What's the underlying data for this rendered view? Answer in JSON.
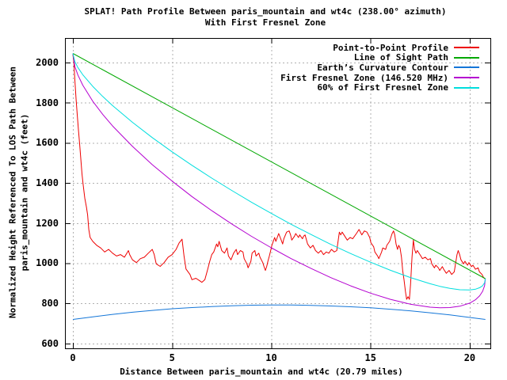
{
  "title": {
    "line1": "SPLAT! Path Profile Between paris_mountain and wt4c (238.00° azimuth)",
    "line2": "With First Fresnel Zone"
  },
  "axes": {
    "x_label": "Distance Between paris_mountain and wt4c (20.79 miles)",
    "y_label_line1": "Normalized Height Referenced To LOS Path Between",
    "y_label_line2": "paris_mountain and wt4c (feet)",
    "x_ticks": [
      0,
      5,
      10,
      15,
      20
    ],
    "y_ticks": [
      600,
      800,
      1000,
      1200,
      1400,
      1600,
      1800,
      2000
    ]
  },
  "legend": [
    {
      "label": "Point-to-Point Profile",
      "color": "#ee0000"
    },
    {
      "label": "Line of Sight Path",
      "color": "#00a800"
    },
    {
      "label": "Earth’s Curvature Contour",
      "color": "#1476d8"
    },
    {
      "label": "First Fresnel Zone (146.520 MHz)",
      "color": "#b400d0"
    },
    {
      "label": "60% of First Fresnel Zone",
      "color": "#00dede"
    }
  ],
  "colors": {
    "background": "#ffffff",
    "border": "#000000",
    "grid": "#b0b0b0",
    "text": "#000000"
  },
  "chart_data": {
    "type": "line",
    "title": "SPLAT! Path Profile Between paris_mountain and wt4c (238.00° azimuth) With First Fresnel Zone",
    "xlabel": "Distance Between paris_mountain and wt4c (20.79 miles)",
    "ylabel": "Normalized Height Referenced To LOS Path Between paris_mountain and wt4c (feet)",
    "xlim": [
      -0.4,
      21.04
    ],
    "ylim": [
      576,
      2122
    ],
    "grid": true,
    "grid_style": "dashed-gray",
    "legend_position": "top-right",
    "series": [
      {
        "name": "Point-to-Point Profile",
        "color": "#ee0000",
        "points": [
          [
            0,
            2040
          ],
          [
            0.05,
            1998
          ],
          [
            0.1,
            1912
          ],
          [
            0.16,
            1820
          ],
          [
            0.22,
            1740
          ],
          [
            0.28,
            1665
          ],
          [
            0.34,
            1595
          ],
          [
            0.4,
            1520
          ],
          [
            0.46,
            1445
          ],
          [
            0.52,
            1390
          ],
          [
            0.6,
            1325
          ],
          [
            0.68,
            1280
          ],
          [
            0.74,
            1240
          ],
          [
            0.8,
            1168
          ],
          [
            0.87,
            1128
          ],
          [
            1.0,
            1109
          ],
          [
            1.2,
            1089
          ],
          [
            1.4,
            1076
          ],
          [
            1.6,
            1056
          ],
          [
            1.8,
            1069
          ],
          [
            2.0,
            1050
          ],
          [
            2.2,
            1036
          ],
          [
            2.4,
            1043
          ],
          [
            2.6,
            1030
          ],
          [
            2.8,
            1063
          ],
          [
            2.86,
            1043
          ],
          [
            3.0,
            1017
          ],
          [
            3.2,
            1003
          ],
          [
            3.4,
            1023
          ],
          [
            3.6,
            1030
          ],
          [
            3.8,
            1050
          ],
          [
            4.0,
            1069
          ],
          [
            4.1,
            1043
          ],
          [
            4.2,
            997
          ],
          [
            4.4,
            984
          ],
          [
            4.6,
            1003
          ],
          [
            4.8,
            1030
          ],
          [
            5.0,
            1043
          ],
          [
            5.2,
            1069
          ],
          [
            5.35,
            1100
          ],
          [
            5.5,
            1120
          ],
          [
            5.6,
            1036
          ],
          [
            5.7,
            971
          ],
          [
            5.9,
            944
          ],
          [
            6.0,
            918
          ],
          [
            6.2,
            925
          ],
          [
            6.4,
            912
          ],
          [
            6.5,
            905
          ],
          [
            6.65,
            918
          ],
          [
            6.8,
            971
          ],
          [
            6.9,
            1010
          ],
          [
            7.0,
            1043
          ],
          [
            7.1,
            1056
          ],
          [
            7.24,
            1096
          ],
          [
            7.3,
            1082
          ],
          [
            7.37,
            1109
          ],
          [
            7.5,
            1063
          ],
          [
            7.64,
            1050
          ],
          [
            7.77,
            1076
          ],
          [
            7.84,
            1036
          ],
          [
            7.97,
            1017
          ],
          [
            8.1,
            1050
          ],
          [
            8.23,
            1069
          ],
          [
            8.3,
            1043
          ],
          [
            8.44,
            1063
          ],
          [
            8.57,
            1056
          ],
          [
            8.63,
            1023
          ],
          [
            8.77,
            997
          ],
          [
            8.83,
            977
          ],
          [
            8.97,
            1010
          ],
          [
            9.03,
            1050
          ],
          [
            9.17,
            1063
          ],
          [
            9.23,
            1036
          ],
          [
            9.37,
            1050
          ],
          [
            9.43,
            1030
          ],
          [
            9.57,
            1003
          ],
          [
            9.63,
            984
          ],
          [
            9.7,
            964
          ],
          [
            9.77,
            984
          ],
          [
            9.83,
            1010
          ],
          [
            9.9,
            1036
          ],
          [
            9.97,
            1063
          ],
          [
            10.03,
            1089
          ],
          [
            10.17,
            1128
          ],
          [
            10.23,
            1109
          ],
          [
            10.3,
            1128
          ],
          [
            10.37,
            1148
          ],
          [
            10.5,
            1115
          ],
          [
            10.57,
            1096
          ],
          [
            10.63,
            1122
          ],
          [
            10.77,
            1155
          ],
          [
            10.9,
            1161
          ],
          [
            10.97,
            1141
          ],
          [
            11.03,
            1115
          ],
          [
            11.17,
            1135
          ],
          [
            11.23,
            1148
          ],
          [
            11.37,
            1128
          ],
          [
            11.43,
            1141
          ],
          [
            11.57,
            1122
          ],
          [
            11.63,
            1135
          ],
          [
            11.7,
            1141
          ],
          [
            11.83,
            1096
          ],
          [
            11.97,
            1076
          ],
          [
            12.1,
            1089
          ],
          [
            12.23,
            1063
          ],
          [
            12.37,
            1050
          ],
          [
            12.5,
            1063
          ],
          [
            12.63,
            1043
          ],
          [
            12.77,
            1056
          ],
          [
            12.9,
            1050
          ],
          [
            13.03,
            1069
          ],
          [
            13.17,
            1056
          ],
          [
            13.3,
            1063
          ],
          [
            13.43,
            1155
          ],
          [
            13.5,
            1141
          ],
          [
            13.57,
            1155
          ],
          [
            13.7,
            1135
          ],
          [
            13.83,
            1115
          ],
          [
            13.97,
            1128
          ],
          [
            14.1,
            1122
          ],
          [
            14.29,
            1148
          ],
          [
            14.42,
            1168
          ],
          [
            14.56,
            1141
          ],
          [
            14.69,
            1161
          ],
          [
            14.82,
            1155
          ],
          [
            14.96,
            1128
          ],
          [
            15.02,
            1102
          ],
          [
            15.16,
            1082
          ],
          [
            15.22,
            1056
          ],
          [
            15.36,
            1036
          ],
          [
            15.42,
            1023
          ],
          [
            15.56,
            1056
          ],
          [
            15.62,
            1076
          ],
          [
            15.76,
            1069
          ],
          [
            15.82,
            1089
          ],
          [
            15.96,
            1109
          ],
          [
            16.09,
            1148
          ],
          [
            16.16,
            1161
          ],
          [
            16.22,
            1141
          ],
          [
            16.29,
            1095
          ],
          [
            16.36,
            1069
          ],
          [
            16.42,
            1089
          ],
          [
            16.49,
            1076
          ],
          [
            16.56,
            1030
          ],
          [
            16.62,
            964
          ],
          [
            16.69,
            918
          ],
          [
            16.76,
            859
          ],
          [
            16.82,
            820
          ],
          [
            16.89,
            833
          ],
          [
            16.96,
            820
          ],
          [
            17.02,
            898
          ],
          [
            17.09,
            1030
          ],
          [
            17.16,
            1116
          ],
          [
            17.22,
            1069
          ],
          [
            17.29,
            1050
          ],
          [
            17.36,
            1063
          ],
          [
            17.49,
            1043
          ],
          [
            17.62,
            1023
          ],
          [
            17.76,
            1030
          ],
          [
            17.89,
            1017
          ],
          [
            18.02,
            1023
          ],
          [
            18.09,
            997
          ],
          [
            18.22,
            977
          ],
          [
            18.29,
            990
          ],
          [
            18.42,
            977
          ],
          [
            18.49,
            964
          ],
          [
            18.62,
            983
          ],
          [
            18.69,
            970
          ],
          [
            18.82,
            950
          ],
          [
            18.96,
            964
          ],
          [
            19.09,
            944
          ],
          [
            19.22,
            957
          ],
          [
            19.36,
            1043
          ],
          [
            19.42,
            1063
          ],
          [
            19.49,
            1043
          ],
          [
            19.56,
            1017
          ],
          [
            19.69,
            997
          ],
          [
            19.76,
            1010
          ],
          [
            19.89,
            990
          ],
          [
            19.96,
            1003
          ],
          [
            20.09,
            983
          ],
          [
            20.16,
            990
          ],
          [
            20.29,
            970
          ],
          [
            20.42,
            977
          ],
          [
            20.49,
            957
          ],
          [
            20.62,
            944
          ],
          [
            20.69,
            930
          ],
          [
            20.79,
            920
          ]
        ]
      },
      {
        "name": "Line of Sight Path",
        "color": "#00a800",
        "points": [
          [
            0,
            2045
          ],
          [
            20.79,
            923
          ]
        ]
      },
      {
        "name": "Earth’s Curvature Contour",
        "color": "#1476d8",
        "points": [
          [
            0,
            720
          ],
          [
            1,
            733
          ],
          [
            2,
            745
          ],
          [
            3,
            756
          ],
          [
            4,
            765
          ],
          [
            5,
            773
          ],
          [
            6,
            779
          ],
          [
            7,
            784
          ],
          [
            8,
            788
          ],
          [
            9,
            791
          ],
          [
            10,
            792
          ],
          [
            11,
            792
          ],
          [
            12,
            790
          ],
          [
            13,
            787
          ],
          [
            14,
            783
          ],
          [
            15,
            778
          ],
          [
            16,
            771
          ],
          [
            17,
            763
          ],
          [
            18,
            753
          ],
          [
            19,
            743
          ],
          [
            20,
            730
          ],
          [
            20.79,
            720
          ]
        ]
      },
      {
        "name": "First Fresnel Zone (146.520 MHz)",
        "color": "#b400d0",
        "points": [
          [
            0,
            2045
          ],
          [
            0.1,
            1980
          ],
          [
            0.25,
            1938
          ],
          [
            0.5,
            1887
          ],
          [
            1,
            1807
          ],
          [
            1.5,
            1742
          ],
          [
            2,
            1684
          ],
          [
            3,
            1582
          ],
          [
            4,
            1491
          ],
          [
            5,
            1409
          ],
          [
            6,
            1332
          ],
          [
            7,
            1262
          ],
          [
            8,
            1196
          ],
          [
            9,
            1134
          ],
          [
            10,
            1077
          ],
          [
            11,
            1023
          ],
          [
            12,
            974
          ],
          [
            13,
            928
          ],
          [
            14,
            887
          ],
          [
            15,
            851
          ],
          [
            16,
            820
          ],
          [
            17,
            796
          ],
          [
            18,
            781
          ],
          [
            18.5,
            778
          ],
          [
            19,
            779
          ],
          [
            19.5,
            786
          ],
          [
            20,
            801
          ],
          [
            20.3,
            819
          ],
          [
            20.5,
            838
          ],
          [
            20.65,
            860
          ],
          [
            20.75,
            888
          ],
          [
            20.79,
            923
          ]
        ]
      },
      {
        "name": "60% of First Fresnel Zone",
        "color": "#00dede",
        "points": [
          [
            0,
            2045
          ],
          [
            0.1,
            2004
          ],
          [
            0.25,
            1975
          ],
          [
            0.5,
            1939
          ],
          [
            1,
            1881
          ],
          [
            1.5,
            1831
          ],
          [
            2,
            1785
          ],
          [
            3,
            1702
          ],
          [
            4,
            1626
          ],
          [
            5,
            1555
          ],
          [
            6,
            1488
          ],
          [
            7,
            1424
          ],
          [
            8,
            1363
          ],
          [
            9,
            1304
          ],
          [
            10,
            1248
          ],
          [
            11,
            1194
          ],
          [
            12,
            1143
          ],
          [
            13,
            1094
          ],
          [
            14,
            1048
          ],
          [
            15,
            1005
          ],
          [
            16,
            965
          ],
          [
            17,
            929
          ],
          [
            18,
            898
          ],
          [
            18.5,
            885
          ],
          [
            19,
            875
          ],
          [
            19.5,
            868
          ],
          [
            20,
            867
          ],
          [
            20.3,
            871
          ],
          [
            20.5,
            878
          ],
          [
            20.65,
            888
          ],
          [
            20.75,
            903
          ],
          [
            20.79,
            923
          ]
        ]
      }
    ]
  }
}
